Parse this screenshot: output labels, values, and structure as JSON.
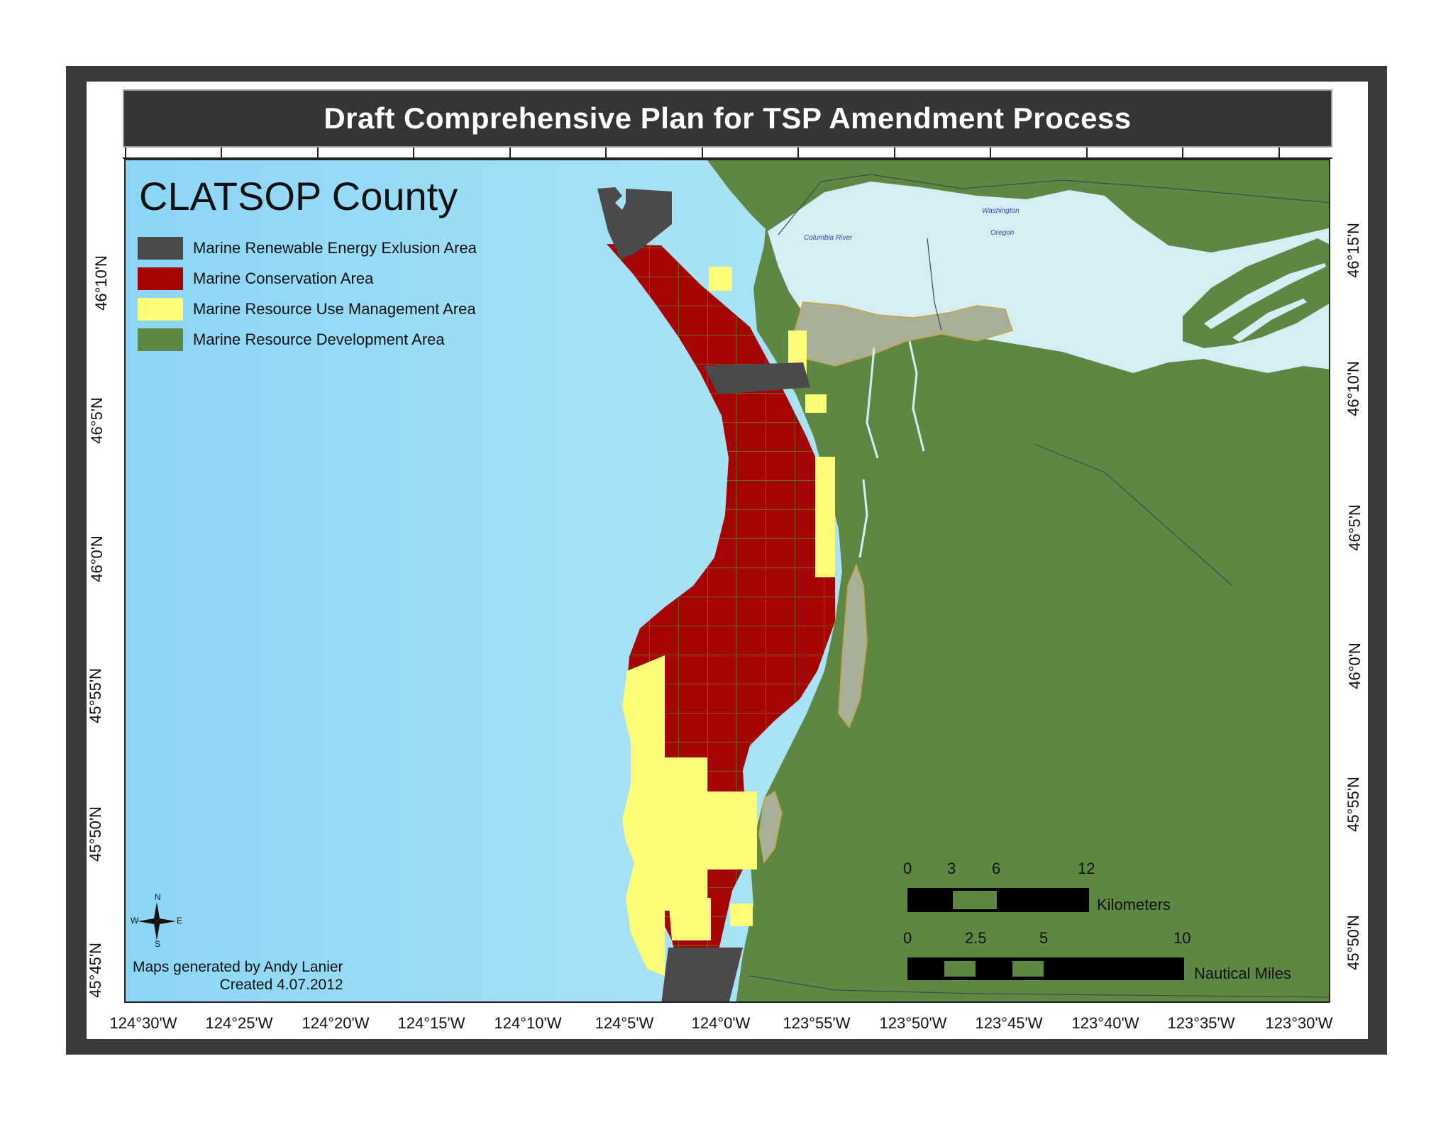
{
  "title": "Draft Comprehensive Plan for TSP Amendment Process",
  "county": "CLATSOP County",
  "legend": [
    {
      "label": "Marine Renewable Energy Exlusion Area",
      "color": "#4a4a4c"
    },
    {
      "label": "Marine Conservation Area",
      "color": "#a50404"
    },
    {
      "label": "Marine Resource Use Management Area",
      "color": "#fdfd78"
    },
    {
      "label": "Marine Resource Development Area",
      "color": "#5f8744"
    }
  ],
  "colors": {
    "ocean": "#9ddcf4",
    "land": "#5f8744",
    "river": "#d7edf4",
    "urban": "#a9b09a"
  },
  "places": {
    "river": "Columbia River",
    "washington": "Washington",
    "oregon": "Oregon"
  },
  "credit": {
    "line1": "Maps generated by Andy Lanier",
    "line2": "Created 4.07.2012"
  },
  "compass": {
    "n": "N",
    "s": "S",
    "e": "E",
    "w": "W"
  },
  "scale_km": {
    "ticks": [
      "0",
      "3",
      "6",
      "12"
    ],
    "unit": "Kilometers"
  },
  "scale_nm": {
    "ticks": [
      "0",
      "2.5",
      "5",
      "10"
    ],
    "unit": "Nautical Miles"
  },
  "lon_labels": [
    "124°30'W",
    "124°25'W",
    "124°20'W",
    "124°15'W",
    "124°10'W",
    "124°5'W",
    "124°0'W",
    "123°55'W",
    "123°50'W",
    "123°45'W",
    "123°40'W",
    "123°35'W",
    "123°30'W"
  ],
  "lat_left": [
    "46°10'N",
    "46°5'N",
    "46°0'N",
    "45°55'N",
    "45°50'N",
    "45°45'N"
  ],
  "lat_right": [
    "46°15'N",
    "46°10'N",
    "46°5'N",
    "46°0'N",
    "45°55'N",
    "45°50'N"
  ]
}
